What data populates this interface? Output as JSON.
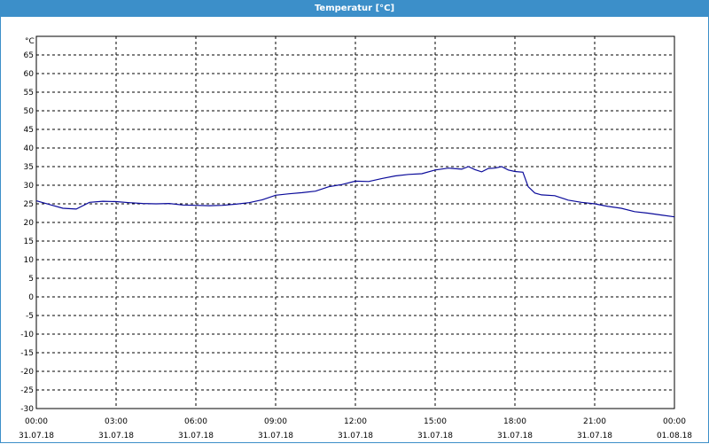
{
  "window": {
    "title": "Temperatur [°C]"
  },
  "colors": {
    "titlebar": "#3c8fc9",
    "line": "#0a0a9a",
    "grid": "#000000"
  },
  "chart_data": {
    "type": "line",
    "title": "Temperatur [°C]",
    "ylabel": "°C",
    "xlabel": "",
    "ylim": [
      -30,
      70
    ],
    "yticks": [
      65,
      60,
      55,
      50,
      45,
      40,
      35,
      30,
      25,
      20,
      15,
      10,
      5,
      0,
      -5,
      -10,
      -15,
      -20,
      -25,
      -30
    ],
    "xlim": [
      0,
      24
    ],
    "xticks": [
      {
        "time": "00:00",
        "date": "31.07.18",
        "hour": 0
      },
      {
        "time": "03:00",
        "date": "31.07.18",
        "hour": 3
      },
      {
        "time": "06:00",
        "date": "31.07.18",
        "hour": 6
      },
      {
        "time": "09:00",
        "date": "31.07.18",
        "hour": 9
      },
      {
        "time": "12:00",
        "date": "31.07.18",
        "hour": 12
      },
      {
        "time": "15:00",
        "date": "31.07.18",
        "hour": 15
      },
      {
        "time": "18:00",
        "date": "31.07.18",
        "hour": 18
      },
      {
        "time": "21:00",
        "date": "31.07.18",
        "hour": 21
      },
      {
        "time": "00:00",
        "date": "01.08.18",
        "hour": 24
      }
    ],
    "grid": true,
    "series": [
      {
        "x": [
          0,
          0.5,
          1,
          1.5,
          2,
          2.5,
          3,
          3.5,
          4,
          4.5,
          5,
          5.5,
          6,
          6.5,
          7,
          7.5,
          8,
          8.5,
          9,
          9.5,
          10,
          10.5,
          11,
          11.5,
          12,
          12.5,
          13,
          13.5,
          14,
          14.5,
          15,
          15.5,
          16,
          16.25,
          16.5,
          16.75,
          17,
          17.25,
          17.5,
          17.75,
          18,
          18.3,
          18.5,
          18.75,
          19,
          19.5,
          20,
          20.5,
          21,
          21.5,
          22,
          22.5,
          23,
          23.5,
          24
        ],
        "y": [
          25.8,
          24.8,
          23.8,
          23.6,
          25.4,
          25.7,
          25.6,
          25.3,
          25.1,
          25.0,
          25.1,
          24.7,
          24.6,
          24.5,
          24.6,
          24.9,
          25.3,
          26.1,
          27.3,
          27.7,
          28.0,
          28.4,
          29.6,
          30.2,
          31.1,
          31.0,
          31.8,
          32.5,
          32.9,
          33.1,
          34.1,
          34.6,
          34.3,
          35.0,
          34.2,
          33.6,
          34.5,
          34.6,
          35.0,
          34.1,
          33.7,
          33.5,
          29.6,
          27.9,
          27.4,
          27.2,
          26.0,
          25.4,
          25.0,
          24.3,
          23.8,
          22.9,
          22.5,
          22.0,
          21.5
        ]
      }
    ]
  }
}
